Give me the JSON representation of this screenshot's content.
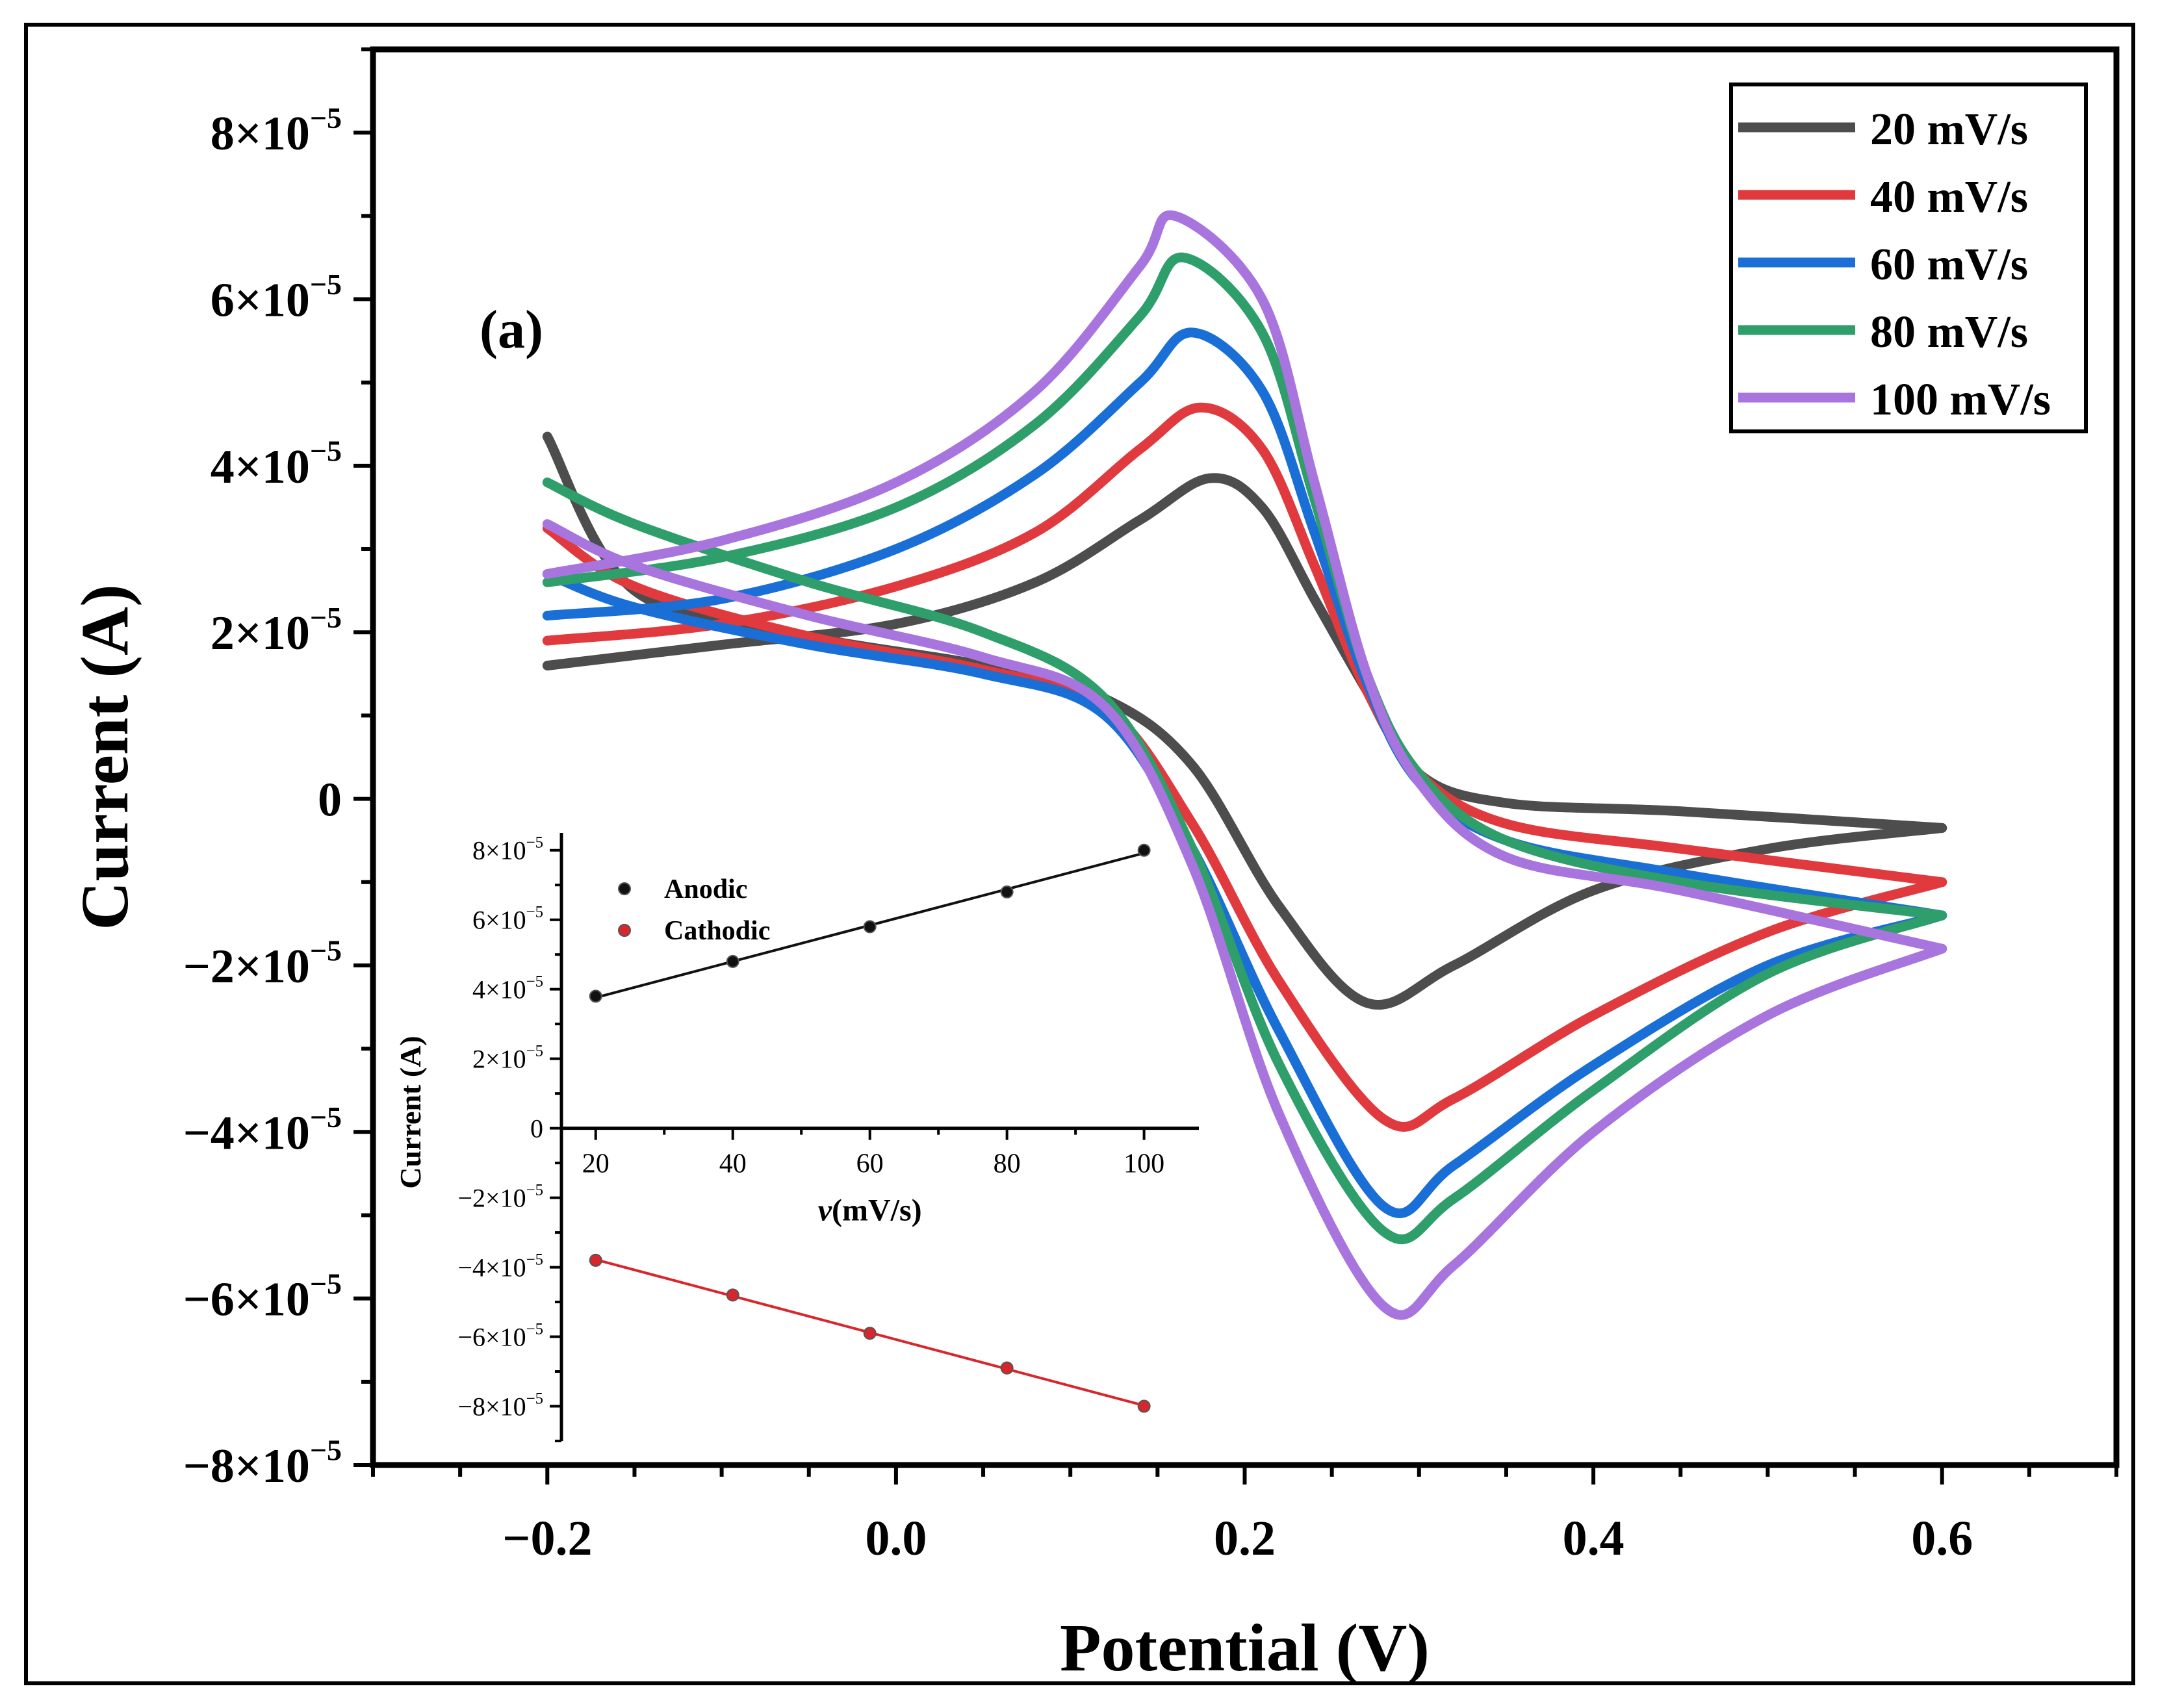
{
  "chart_data": [
    {
      "type": "line",
      "panel_label": "(a)",
      "title": "",
      "xlabel": "Potential (V)",
      "ylabel": "Current (A)",
      "xlim": [
        -0.3,
        0.7
      ],
      "ylim": [
        -8e-05,
        9e-05
      ],
      "x_ticks": [
        -0.2,
        0.0,
        0.2,
        0.4,
        0.6
      ],
      "x_tick_labels": [
        "−0.2",
        "0.0",
        "0.2",
        "0.4",
        "0.6"
      ],
      "y_ticks": [
        8e-05,
        6e-05,
        4e-05,
        2e-05,
        0,
        -2e-05,
        -4e-05,
        -6e-05,
        -8e-05
      ],
      "y_tick_labels": [
        {
          "mant": "8×10",
          "exp": "−5"
        },
        {
          "mant": "6×10",
          "exp": "−5"
        },
        {
          "mant": "4×10",
          "exp": "−5"
        },
        {
          "mant": "2×10",
          "exp": "−5"
        },
        {
          "mant": "0",
          "exp": ""
        },
        {
          "mant": "−2×10",
          "exp": "−5"
        },
        {
          "mant": "−4×10",
          "exp": "−5"
        },
        {
          "mant": "−6×10",
          "exp": "−5"
        },
        {
          "mant": "−8×10",
          "exp": "−5"
        }
      ],
      "legend_position": "top-right",
      "series": [
        {
          "name": "20 mV/s",
          "color": "#4d4d4d",
          "forward": [
            [
              -0.2,
              1.6e-05
            ],
            [
              -0.1,
              1.85e-05
            ],
            [
              0.0,
              2.1e-05
            ],
            [
              0.08,
              2.6e-05
            ],
            [
              0.14,
              3.35e-05
            ],
            [
              0.18,
              3.85e-05
            ],
            [
              0.21,
              3.5e-05
            ],
            [
              0.24,
              2.4e-05
            ],
            [
              0.27,
              1.3e-05
            ],
            [
              0.3,
              3e-06
            ],
            [
              0.35,
              -5e-07
            ],
            [
              0.45,
              -1.5e-06
            ],
            [
              0.6,
              -3.5e-06
            ]
          ],
          "reverse": [
            [
              0.6,
              -3.5e-06
            ],
            [
              0.5,
              -6e-06
            ],
            [
              0.4,
              -1.1e-05
            ],
            [
              0.32,
              -2e-05
            ],
            [
              0.27,
              -2.45e-05
            ],
            [
              0.22,
              -1.3e-05
            ],
            [
              0.17,
              4e-06
            ],
            [
              0.12,
              1.2e-05
            ],
            [
              0.05,
              1.6e-05
            ],
            [
              -0.05,
              1.95e-05
            ],
            [
              -0.15,
              2.5e-05
            ],
            [
              -0.2,
              4.35e-05
            ]
          ]
        },
        {
          "name": "40 mV/s",
          "color": "#e0393e",
          "forward": [
            [
              -0.2,
              1.9e-05
            ],
            [
              -0.1,
              2.1e-05
            ],
            [
              0.0,
              2.55e-05
            ],
            [
              0.08,
              3.2e-05
            ],
            [
              0.14,
              4.2e-05
            ],
            [
              0.175,
              4.7e-05
            ],
            [
              0.21,
              4.2e-05
            ],
            [
              0.24,
              2.8e-05
            ],
            [
              0.27,
              1.3e-05
            ],
            [
              0.3,
              3e-06
            ],
            [
              0.35,
              -3e-06
            ],
            [
              0.45,
              -6e-06
            ],
            [
              0.6,
              -1e-05
            ]
          ],
          "reverse": [
            [
              0.6,
              -1e-05
            ],
            [
              0.5,
              -1.6e-05
            ],
            [
              0.4,
              -2.6e-05
            ],
            [
              0.32,
              -3.6e-05
            ],
            [
              0.28,
              -3.85e-05
            ],
            [
              0.22,
              -2.2e-05
            ],
            [
              0.17,
              -3e-06
            ],
            [
              0.12,
              1.1e-05
            ],
            [
              0.05,
              1.55e-05
            ],
            [
              -0.05,
              1.95e-05
            ],
            [
              -0.15,
              2.55e-05
            ],
            [
              -0.2,
              3.25e-05
            ]
          ]
        },
        {
          "name": "60 mV/s",
          "color": "#1a6fd6",
          "forward": [
            [
              -0.2,
              2.2e-05
            ],
            [
              -0.1,
              2.4e-05
            ],
            [
              0.0,
              3e-05
            ],
            [
              0.08,
              3.9e-05
            ],
            [
              0.14,
              5e-05
            ],
            [
              0.17,
              5.6e-05
            ],
            [
              0.21,
              4.9e-05
            ],
            [
              0.24,
              3.2e-05
            ],
            [
              0.27,
              1.4e-05
            ],
            [
              0.3,
              2e-06
            ],
            [
              0.35,
              -5e-06
            ],
            [
              0.45,
              -9e-06
            ],
            [
              0.6,
              -1.4e-05
            ]
          ],
          "reverse": [
            [
              0.6,
              -1.4e-05
            ],
            [
              0.5,
              -2e-05
            ],
            [
              0.4,
              -3.2e-05
            ],
            [
              0.32,
              -4.4e-05
            ],
            [
              0.28,
              -4.9e-05
            ],
            [
              0.22,
              -2.8e-05
            ],
            [
              0.17,
              -6e-06
            ],
            [
              0.12,
              1e-05
            ],
            [
              0.05,
              1.5e-05
            ],
            [
              -0.05,
              1.85e-05
            ],
            [
              -0.15,
              2.3e-05
            ],
            [
              -0.2,
              2.7e-05
            ]
          ]
        },
        {
          "name": "80 mV/s",
          "color": "#2e9e6a",
          "forward": [
            [
              -0.2,
              2.6e-05
            ],
            [
              -0.1,
              2.9e-05
            ],
            [
              0.0,
              3.5e-05
            ],
            [
              0.08,
              4.5e-05
            ],
            [
              0.14,
              5.8e-05
            ],
            [
              0.165,
              6.5e-05
            ],
            [
              0.21,
              5.6e-05
            ],
            [
              0.24,
              3.6e-05
            ],
            [
              0.27,
              1.5e-05
            ],
            [
              0.3,
              3e-06
            ],
            [
              0.35,
              -5e-06
            ],
            [
              0.45,
              -1e-05
            ],
            [
              0.6,
              -1.4e-05
            ]
          ],
          "reverse": [
            [
              0.6,
              -1.4e-05
            ],
            [
              0.5,
              -2.1e-05
            ],
            [
              0.4,
              -3.5e-05
            ],
            [
              0.32,
              -4.8e-05
            ],
            [
              0.28,
              -5.2e-05
            ],
            [
              0.22,
              -3.2e-05
            ],
            [
              0.17,
              -6e-06
            ],
            [
              0.12,
              1.2e-05
            ],
            [
              0.05,
              2e-05
            ],
            [
              -0.05,
              2.6e-05
            ],
            [
              -0.15,
              3.3e-05
            ],
            [
              -0.2,
              3.8e-05
            ]
          ]
        },
        {
          "name": "100 mV/s",
          "color": "#a874de",
          "forward": [
            [
              -0.2,
              2.7e-05
            ],
            [
              -0.1,
              3.1e-05
            ],
            [
              0.0,
              3.8e-05
            ],
            [
              0.08,
              4.9e-05
            ],
            [
              0.14,
              6.4e-05
            ],
            [
              0.16,
              7e-05
            ],
            [
              0.21,
              6e-05
            ],
            [
              0.24,
              3.8e-05
            ],
            [
              0.27,
              1.5e-05
            ],
            [
              0.3,
              2e-06
            ],
            [
              0.35,
              -7e-06
            ],
            [
              0.45,
              -1.1e-05
            ],
            [
              0.6,
              -1.8e-05
            ]
          ],
          "reverse": [
            [
              0.6,
              -1.8e-05
            ],
            [
              0.5,
              -2.6e-05
            ],
            [
              0.4,
              -4e-05
            ],
            [
              0.32,
              -5.6e-05
            ],
            [
              0.28,
              -6.1e-05
            ],
            [
              0.22,
              -3.8e-05
            ],
            [
              0.17,
              -8e-06
            ],
            [
              0.12,
              1.1e-05
            ],
            [
              0.05,
              1.7e-05
            ],
            [
              -0.05,
              2.2e-05
            ],
            [
              -0.15,
              2.8e-05
            ],
            [
              -0.2,
              3.3e-05
            ]
          ]
        }
      ]
    },
    {
      "type": "scatter",
      "title": "",
      "xlabel_italic": "v",
      "xlabel_rest": "(mV/s)",
      "ylabel": "Current (A)",
      "xlim": [
        15,
        108
      ],
      "ylim": [
        -9e-05,
        8.5e-05
      ],
      "x_ticks": [
        20,
        40,
        60,
        80,
        100
      ],
      "x_tick_labels": [
        "20",
        "40",
        "60",
        "80",
        "100"
      ],
      "y_ticks": [
        8e-05,
        6e-05,
        4e-05,
        2e-05,
        0,
        -2e-05,
        -4e-05,
        -6e-05,
        -8e-05
      ],
      "y_tick_labels": [
        {
          "mant": "8×10",
          "exp": "−5"
        },
        {
          "mant": "6×10",
          "exp": "−5"
        },
        {
          "mant": "4×10",
          "exp": "−5"
        },
        {
          "mant": "2×10",
          "exp": "−5"
        },
        {
          "mant": "0",
          "exp": ""
        },
        {
          "mant": "−2×10",
          "exp": "−5"
        },
        {
          "mant": "−4×10",
          "exp": "−5"
        },
        {
          "mant": "−6×10",
          "exp": "−5"
        },
        {
          "mant": "−8×10",
          "exp": "−5"
        }
      ],
      "legend_position": "top-left",
      "series": [
        {
          "name": "Anodic",
          "color": "#111111",
          "x": [
            20,
            40,
            60,
            80,
            100
          ],
          "y": [
            3.8e-05,
            4.8e-05,
            5.8e-05,
            6.8e-05,
            8e-05
          ]
        },
        {
          "name": "Cathodic",
          "color": "#d9262c",
          "x": [
            20,
            40,
            60,
            80,
            100
          ],
          "y": [
            -3.8e-05,
            -4.8e-05,
            -5.9e-05,
            -6.9e-05,
            -8e-05
          ]
        }
      ]
    }
  ]
}
